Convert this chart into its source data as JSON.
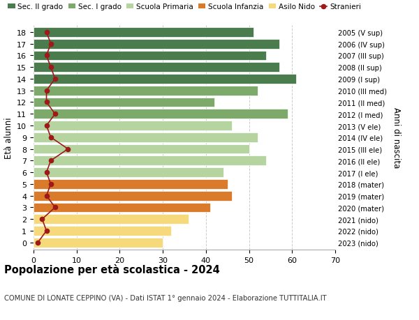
{
  "ages": [
    18,
    17,
    16,
    15,
    14,
    13,
    12,
    11,
    10,
    9,
    8,
    7,
    6,
    5,
    4,
    3,
    2,
    1,
    0
  ],
  "right_labels": [
    "2005 (V sup)",
    "2006 (IV sup)",
    "2007 (III sup)",
    "2008 (II sup)",
    "2009 (I sup)",
    "2010 (III med)",
    "2011 (II med)",
    "2012 (I med)",
    "2013 (V ele)",
    "2014 (IV ele)",
    "2015 (III ele)",
    "2016 (II ele)",
    "2017 (I ele)",
    "2018 (mater)",
    "2019 (mater)",
    "2020 (mater)",
    "2021 (nido)",
    "2022 (nido)",
    "2023 (nido)"
  ],
  "bar_values": [
    51,
    57,
    54,
    57,
    61,
    52,
    42,
    59,
    46,
    52,
    50,
    54,
    44,
    45,
    46,
    41,
    36,
    32,
    30
  ],
  "bar_colors": [
    "#4a7c4e",
    "#4a7c4e",
    "#4a7c4e",
    "#4a7c4e",
    "#4a7c4e",
    "#7daa6a",
    "#7daa6a",
    "#7daa6a",
    "#b5d4a0",
    "#b5d4a0",
    "#b5d4a0",
    "#b5d4a0",
    "#b5d4a0",
    "#d97b2a",
    "#d97b2a",
    "#d97b2a",
    "#f5d97a",
    "#f5d97a",
    "#f5d97a"
  ],
  "stranieri_values": [
    3,
    4,
    3,
    4,
    5,
    3,
    3,
    5,
    3,
    4,
    8,
    4,
    3,
    4,
    3,
    5,
    2,
    3,
    1
  ],
  "stranieri_color": "#9e1a1a",
  "legend_labels": [
    "Sec. II grado",
    "Sec. I grado",
    "Scuola Primaria",
    "Scuola Infanzia",
    "Asilo Nido",
    "Stranieri"
  ],
  "legend_colors": [
    "#4a7c4e",
    "#7daa6a",
    "#b5d4a0",
    "#d97b2a",
    "#f5d97a",
    "#9e1a1a"
  ],
  "ylabel_left": "Età alunni",
  "ylabel_right": "Anni di nascita",
  "title": "Popolazione per età scolastica - 2024",
  "subtitle": "COMUNE DI LONATE CEPPINO (VA) - Dati ISTAT 1° gennaio 2024 - Elaborazione TUTTITALIA.IT",
  "xlim": [
    0,
    70
  ],
  "xticks": [
    0,
    10,
    20,
    30,
    40,
    50,
    60,
    70
  ],
  "bg_color": "#ffffff",
  "bar_height": 0.82
}
